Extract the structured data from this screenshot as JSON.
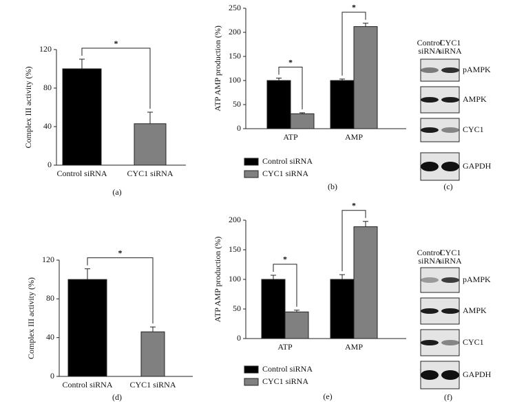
{
  "chart_data": [
    {
      "type": "bar",
      "ylabel": "Complex III activity (%)",
      "categories": [
        "Control siRNA",
        "CYC1 siRNA"
      ],
      "values": [
        100,
        43
      ],
      "errors": [
        10,
        12
      ],
      "colors": [
        "#000000",
        "#808080"
      ],
      "ylim": [
        0,
        120
      ],
      "yticks": [
        0,
        40,
        80,
        120
      ],
      "annotation": "*",
      "caption": "(a)"
    },
    {
      "type": "grouped_bar",
      "ylabel": "ATP AMP production (%)",
      "categories": [
        "ATP",
        "AMP"
      ],
      "series": [
        {
          "name": "Control siRNA",
          "color": "#000000",
          "values": [
            100,
            100
          ],
          "errors": [
            5,
            3
          ]
        },
        {
          "name": "CYC1 siRNA",
          "color": "#808080",
          "values": [
            31,
            212
          ],
          "errors": [
            2,
            7
          ]
        }
      ],
      "ylim": [
        0,
        250
      ],
      "yticks": [
        0,
        50,
        100,
        150,
        200,
        250
      ],
      "annotations": [
        "*",
        "*"
      ],
      "caption": "(b)"
    },
    {
      "type": "bar",
      "ylabel": "Complex III activity (%)",
      "categories": [
        "Control siRNA",
        "CYC1 siRNA"
      ],
      "values": [
        100,
        46
      ],
      "errors": [
        11,
        5
      ],
      "colors": [
        "#000000",
        "#808080"
      ],
      "ylim": [
        0,
        120
      ],
      "yticks": [
        0,
        40,
        80,
        120
      ],
      "annotation": "*",
      "caption": "(d)"
    },
    {
      "type": "grouped_bar",
      "ylabel": "ATP AMP production (%)",
      "categories": [
        "ATP",
        "AMP"
      ],
      "series": [
        {
          "name": "Control siRNA",
          "color": "#000000",
          "values": [
            100,
            100
          ],
          "errors": [
            7,
            8
          ]
        },
        {
          "name": "CYC1 siRNA",
          "color": "#808080",
          "values": [
            45,
            189
          ],
          "errors": [
            3,
            9
          ]
        }
      ],
      "ylim": [
        0,
        200
      ],
      "yticks": [
        0,
        50,
        100,
        150,
        200
      ],
      "annotations": [
        "*",
        "*"
      ],
      "caption": "(e)"
    }
  ],
  "blots": [
    {
      "lanes": [
        [
          "Control",
          "siRNA"
        ],
        [
          "CYC1",
          "siRNA"
        ]
      ],
      "rows": [
        "pAMPK",
        "AMPK",
        "CYC1",
        "GAPDH"
      ],
      "caption": "(c)"
    },
    {
      "lanes": [
        [
          "Control",
          "siRNA"
        ],
        [
          "CYC1",
          "siRNA"
        ]
      ],
      "rows": [
        "pAMPK",
        "AMPK",
        "CYC1",
        "GAPDH"
      ],
      "caption": "(f)"
    }
  ]
}
